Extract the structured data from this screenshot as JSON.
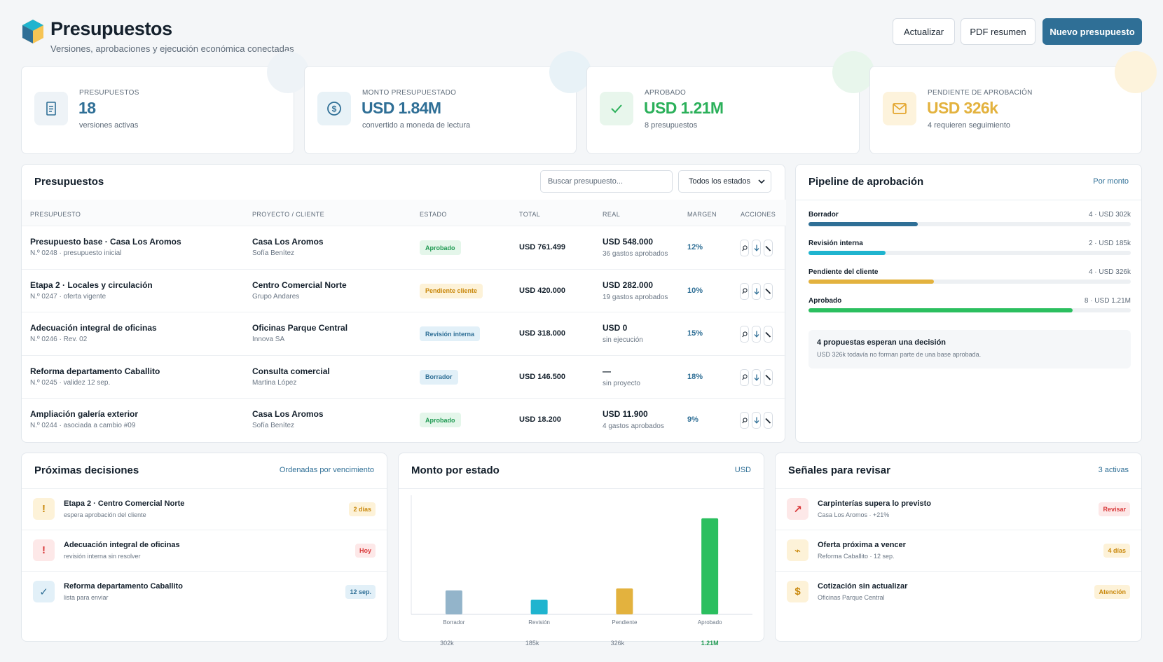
{
  "header": {
    "title": "Presupuestos",
    "subtitle": "Versiones, aprobaciones y ejecución económica conectadas",
    "buttons": {
      "refresh": "Actualizar",
      "pdf": "PDF resumen",
      "new": "Nuevo presupuesto"
    }
  },
  "kpis": [
    {
      "label": "PRESUPUESTOS",
      "value": "18",
      "sub": "versiones activas",
      "icon": "document-icon",
      "color": "#2f6f96"
    },
    {
      "label": "MONTO PRESUPUESTADO",
      "value": "USD 1.84M",
      "sub": "convertido a moneda de lectura",
      "icon": "dollar-icon",
      "color": "#2f6f96"
    },
    {
      "label": "APROBADO",
      "value": "USD 1.21M",
      "sub": "8 presupuestos",
      "icon": "check-icon",
      "color": "#2bb05a"
    },
    {
      "label": "PENDIENTE DE APROBACIÓN",
      "value": "USD 326k",
      "sub": "4 requieren seguimiento",
      "icon": "mail-icon",
      "color": "#e3b23e"
    }
  ],
  "table": {
    "title": "Presupuestos",
    "search_placeholder": "Buscar presupuesto...",
    "filter_value": "Todos los estados",
    "columns": [
      "PRESUPUESTO",
      "PROYECTO / CLIENTE",
      "ESTADO",
      "TOTAL",
      "REAL",
      "MARGEN",
      "ACCIONES"
    ],
    "rows": [
      {
        "name": "Presupuesto base · Casa Los Aromos",
        "meta": "N.º 0248 · presupuesto inicial",
        "project": "Casa Los Aromos",
        "client": "Sofía Benítez",
        "status": "Aprobado",
        "status_type": "green",
        "total": "USD 761.499",
        "real": "USD 548.000",
        "real_sub": "36 gastos aprobados",
        "margin": "12%"
      },
      {
        "name": "Etapa 2 · Locales y circulación",
        "meta": "N.º 0247 · oferta vigente",
        "project": "Centro Comercial Norte",
        "client": "Grupo Andares",
        "status": "Pendiente cliente",
        "status_type": "yellow",
        "total": "USD 420.000",
        "real": "USD 282.000",
        "real_sub": "19 gastos aprobados",
        "margin": "10%"
      },
      {
        "name": "Adecuación integral de oficinas",
        "meta": "N.º 0246 · Rev. 02",
        "project": "Oficinas Parque Central",
        "client": "Innova SA",
        "status": "Revisión interna",
        "status_type": "blue",
        "total": "USD 318.000",
        "real": "USD 0",
        "real_sub": "sin ejecución",
        "margin": "15%"
      },
      {
        "name": "Reforma departamento Caballito",
        "meta": "N.º 0245 · validez 12 sep.",
        "project": "Consulta comercial",
        "client": "Martina López",
        "status": "Borrador",
        "status_type": "blue",
        "total": "USD 146.500",
        "real": "—",
        "real_sub": "sin proyecto",
        "margin": "18%"
      },
      {
        "name": "Ampliación galería exterior",
        "meta": "N.º 0244 · asociada a cambio #09",
        "project": "Casa Los Aromos",
        "client": "Sofía Benítez",
        "status": "Aprobado",
        "status_type": "green",
        "total": "USD 18.200",
        "real": "USD 11.900",
        "real_sub": "4 gastos aprobados",
        "margin": "9%"
      }
    ]
  },
  "pipeline": {
    "title": "Pipeline de aprobación",
    "link": "Por monto",
    "items": [
      {
        "name": "Borrador",
        "amount": "4 · USD 302k",
        "fraction": 0.34,
        "color": "#2f6f96"
      },
      {
        "name": "Revisión interna",
        "amount": "2 · USD 185k",
        "fraction": 0.24,
        "color": "#1fb4cf"
      },
      {
        "name": "Pendiente del cliente",
        "amount": "4 · USD 326k",
        "fraction": 0.39,
        "color": "#e3b23e"
      },
      {
        "name": "Aprobado",
        "amount": "8 · USD 1.21M",
        "fraction": 0.82,
        "color": "#2bbf5f"
      }
    ],
    "notice_title": "4 propuestas esperan una decisión",
    "notice_text": "USD 326k todavía no forman parte de una base aprobada."
  },
  "decisions": {
    "title": "Próximas decisiones",
    "link": "Ordenadas por vencimiento",
    "items": [
      {
        "title": "Etapa 2 · Centro Comercial Norte",
        "sub": "espera aprobación del cliente",
        "pill": "2 días",
        "icon": "!",
        "type": "yellow"
      },
      {
        "title": "Adecuación integral de oficinas",
        "sub": "revisión interna sin resolver",
        "pill": "Hoy",
        "icon": "!",
        "type": "red"
      },
      {
        "title": "Reforma departamento Caballito",
        "sub": "lista para enviar",
        "pill": "12 sep.",
        "icon": "✓",
        "type": "blue"
      }
    ]
  },
  "chart_card": {
    "title": "Monto por estado",
    "link": "USD"
  },
  "chart_data": {
    "type": "bar",
    "categories": [
      "Borrador",
      "Revisión",
      "Pendiente",
      "Aprobado"
    ],
    "values": [
      302,
      185,
      326,
      1210
    ],
    "value_labels": [
      "302k",
      "185k",
      "326k",
      "1.21M"
    ],
    "colors": [
      "#93b4ca",
      "#1fb4cf",
      "#e3b23e",
      "#2bbf5f"
    ],
    "ylim": [
      0,
      1500
    ]
  },
  "signals": {
    "title": "Señales para revisar",
    "link": "3 activas",
    "items": [
      {
        "title": "Carpinterías supera lo previsto",
        "sub": "Casa Los Aromos · +21%",
        "pill": "Revisar",
        "icon": "↗",
        "type": "red"
      },
      {
        "title": "Oferta próxima a vencer",
        "sub": "Reforma Caballito · 12 sep.",
        "pill": "4 días",
        "icon": "⌁",
        "type": "yellow"
      },
      {
        "title": "Cotización sin actualizar",
        "sub": "Oficinas Parque Central",
        "pill": "Atención",
        "icon": "$",
        "type": "yellow"
      }
    ]
  }
}
